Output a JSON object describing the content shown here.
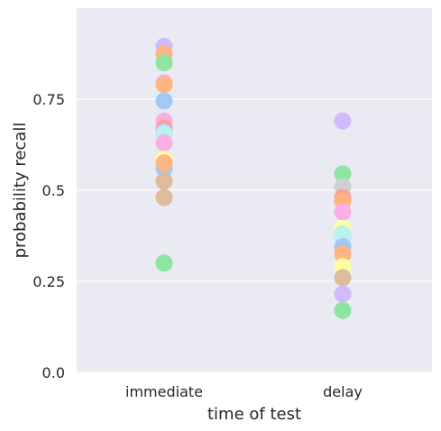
{
  "chart_data": {
    "type": "scatter",
    "xlabel": "time of test",
    "ylabel": "probability recall",
    "categories": [
      "immediate",
      "delay"
    ],
    "yticks": [
      {
        "value": 0.0,
        "label": "0.0"
      },
      {
        "value": 0.25,
        "label": "0.25"
      },
      {
        "value": 0.5,
        "label": "0.5"
      },
      {
        "value": 0.75,
        "label": "0.75"
      }
    ],
    "ylim": [
      0.0,
      1.0
    ],
    "grid": true,
    "colors": {
      "background": "#eaeaf2",
      "grid": "#ffffff",
      "text": "#262626"
    },
    "points": [
      {
        "category": "immediate",
        "y": 0.895,
        "color": "#d0bbff"
      },
      {
        "category": "immediate",
        "y": 0.875,
        "color": "#ffb482"
      },
      {
        "category": "immediate",
        "y": 0.85,
        "color": "#8de5a1"
      },
      {
        "category": "immediate",
        "y": 0.795,
        "color": "#fab0e4"
      },
      {
        "category": "immediate",
        "y": 0.79,
        "color": "#ffb482"
      },
      {
        "category": "immediate",
        "y": 0.745,
        "color": "#a1c9f4"
      },
      {
        "category": "immediate",
        "y": 0.69,
        "color": "#fab0e4"
      },
      {
        "category": "immediate",
        "y": 0.67,
        "color": "#ff9f9b"
      },
      {
        "category": "immediate",
        "y": 0.66,
        "color": "#d0bbff"
      },
      {
        "category": "immediate",
        "y": 0.655,
        "color": "#b9f2f0"
      },
      {
        "category": "immediate",
        "y": 0.63,
        "color": "#fab0e4"
      },
      {
        "category": "immediate",
        "y": 0.585,
        "color": "#fffea3"
      },
      {
        "category": "immediate",
        "y": 0.56,
        "color": "#a1c9f4"
      },
      {
        "category": "immediate",
        "y": 0.575,
        "color": "#ffb482"
      },
      {
        "category": "immediate",
        "y": 0.525,
        "color": "#debb9b"
      },
      {
        "category": "immediate",
        "y": 0.48,
        "color": "#debb9b"
      },
      {
        "category": "immediate",
        "y": 0.3,
        "color": "#8de5a1"
      },
      {
        "category": "delay",
        "y": 0.69,
        "color": "#d0bbff"
      },
      {
        "category": "delay",
        "y": 0.545,
        "color": "#8de5a1"
      },
      {
        "category": "delay",
        "y": 0.51,
        "color": "#cfcfcf"
      },
      {
        "category": "delay",
        "y": 0.48,
        "color": "#ff9f9b"
      },
      {
        "category": "delay",
        "y": 0.47,
        "color": "#ffb482"
      },
      {
        "category": "delay",
        "y": 0.44,
        "color": "#fab0e4"
      },
      {
        "category": "delay",
        "y": 0.395,
        "color": "#fffea3"
      },
      {
        "category": "delay",
        "y": 0.38,
        "color": "#b9f2f0"
      },
      {
        "category": "delay",
        "y": 0.37,
        "color": "#b9f2f0"
      },
      {
        "category": "delay",
        "y": 0.345,
        "color": "#a1c9f4"
      },
      {
        "category": "delay",
        "y": 0.325,
        "color": "#ffb482"
      },
      {
        "category": "delay",
        "y": 0.29,
        "color": "#fffea3"
      },
      {
        "category": "delay",
        "y": 0.26,
        "color": "#debb9b"
      },
      {
        "category": "delay",
        "y": 0.215,
        "color": "#d0bbff"
      },
      {
        "category": "delay",
        "y": 0.17,
        "color": "#8de5a1"
      }
    ]
  }
}
